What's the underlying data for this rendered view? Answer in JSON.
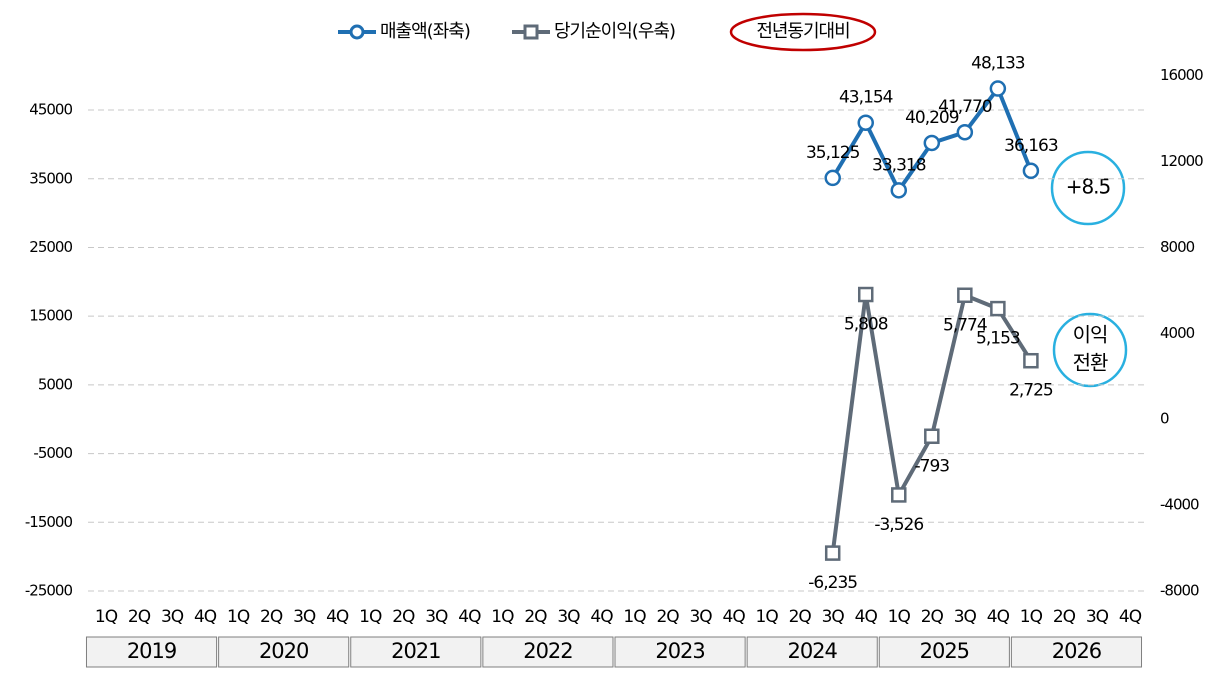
{
  "chart_data": {
    "type": "line",
    "categories": [
      "1Q",
      "2Q",
      "3Q",
      "4Q",
      "1Q",
      "2Q",
      "3Q",
      "4Q",
      "1Q",
      "2Q",
      "3Q",
      "4Q",
      "1Q",
      "2Q",
      "3Q",
      "4Q",
      "1Q",
      "2Q",
      "3Q",
      "4Q",
      "1Q",
      "2Q",
      "3Q",
      "4Q",
      "1Q",
      "2Q",
      "3Q",
      "4Q",
      "1Q",
      "2Q",
      "3Q",
      "4Q"
    ],
    "years": [
      "2019",
      "2020",
      "2021",
      "2022",
      "2023",
      "2024",
      "2025",
      "2026"
    ],
    "series": [
      {
        "name": "매출액(좌축)",
        "color": "#1f6fb2",
        "marker": "circle",
        "values": [
          null,
          null,
          null,
          null,
          null,
          null,
          null,
          null,
          null,
          null,
          null,
          null,
          null,
          null,
          null,
          null,
          null,
          null,
          null,
          null,
          null,
          null,
          35125,
          43154,
          33318,
          40209,
          41770,
          48133,
          36163,
          null,
          null,
          null
        ],
        "value_labels": [
          null,
          null,
          null,
          null,
          null,
          null,
          null,
          null,
          null,
          null,
          null,
          null,
          null,
          null,
          null,
          null,
          null,
          null,
          null,
          null,
          null,
          null,
          "35,125",
          "43,154",
          "33,318",
          "40,209",
          "41,770",
          "48,133",
          "36,163",
          null,
          null,
          null
        ]
      },
      {
        "name": "당기순이익(우축)",
        "color": "#5f6b78",
        "marker": "square",
        "axis": "y2",
        "values": [
          null,
          null,
          null,
          null,
          null,
          null,
          null,
          null,
          null,
          null,
          null,
          null,
          null,
          null,
          null,
          null,
          null,
          null,
          null,
          null,
          null,
          null,
          -6235,
          5808,
          -3526,
          -793,
          5774,
          5153,
          2725,
          null,
          null,
          null
        ],
        "value_labels": [
          null,
          null,
          null,
          null,
          null,
          null,
          null,
          null,
          null,
          null,
          null,
          null,
          null,
          null,
          null,
          null,
          null,
          null,
          null,
          null,
          null,
          null,
          "-6,235",
          "5,808",
          "-3,526",
          "-793",
          "5,774",
          "5,153",
          "2,725",
          null,
          null,
          null
        ]
      }
    ],
    "legend_note": "전년동기대비",
    "annotations": [
      {
        "lines": [
          "+8.5"
        ]
      },
      {
        "lines": [
          "이익",
          "전환"
        ]
      }
    ],
    "ylim": [
      -25000,
      50000
    ],
    "yticks": [
      -25000,
      -15000,
      -5000,
      5000,
      15000,
      25000,
      35000,
      45000
    ],
    "y2lim": [
      -8000,
      16000
    ],
    "y2ticks": [
      -8000,
      -4000,
      0,
      4000,
      8000,
      12000,
      16000
    ],
    "grid": true
  }
}
